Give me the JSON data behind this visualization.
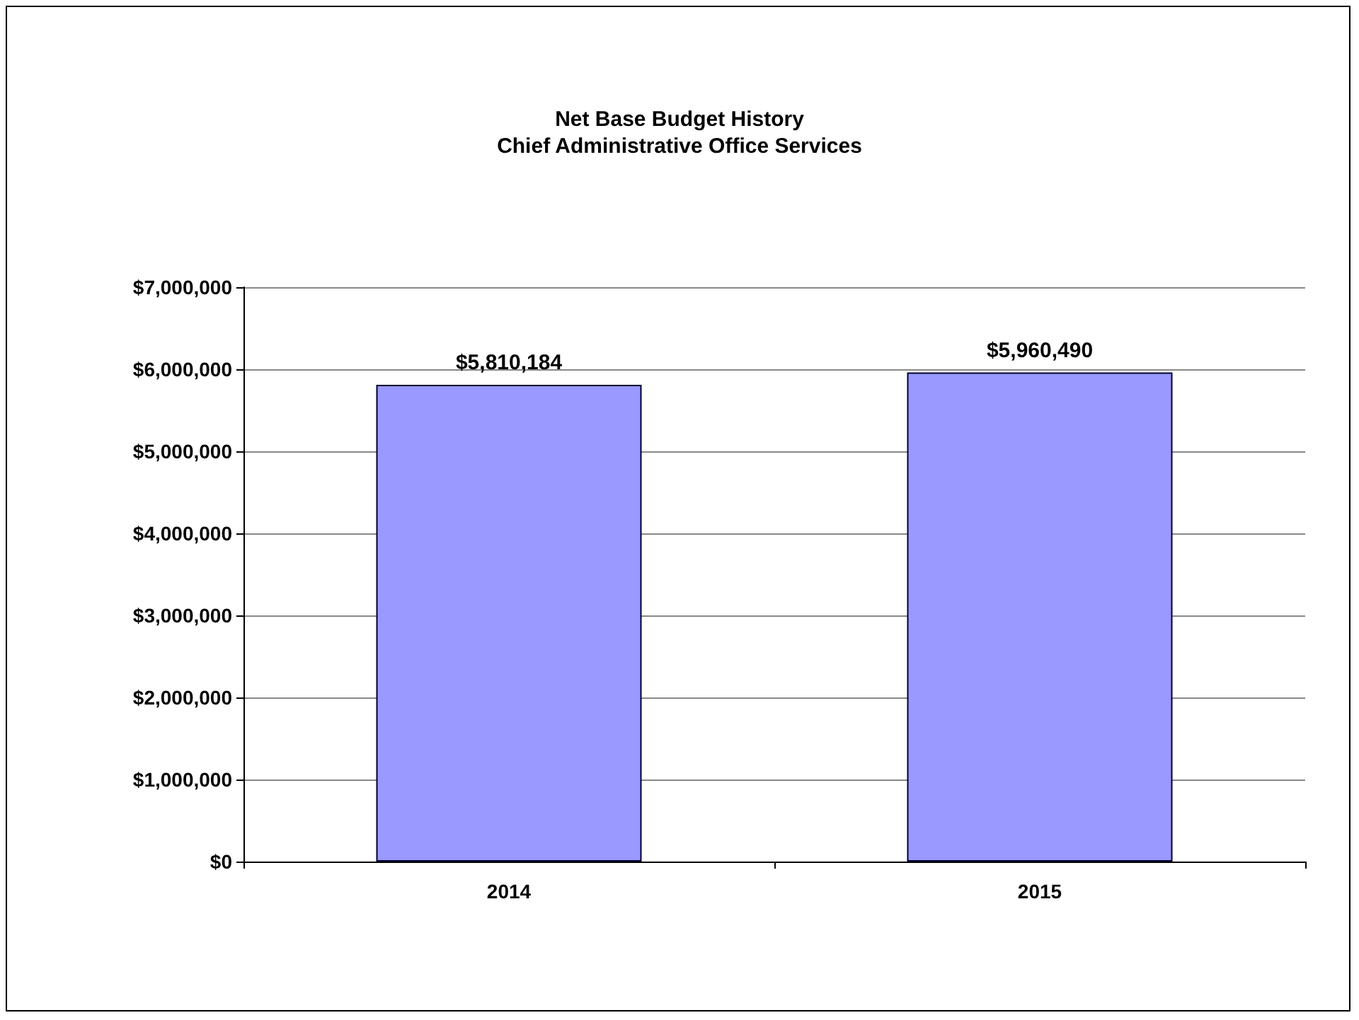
{
  "chart_data": {
    "type": "bar",
    "title": "Net Base Budget History",
    "subtitle": "Chief Administrative Office Services",
    "categories": [
      "2014",
      "2015"
    ],
    "values": [
      5810184,
      5960490
    ],
    "value_labels": [
      "$5,810,184",
      "$5,960,490"
    ],
    "color": "#9999ff",
    "ylim": [
      0,
      7000000
    ],
    "yticks": [
      {
        "value": 0,
        "label": "$0"
      },
      {
        "value": 1000000,
        "label": "$1,000,000"
      },
      {
        "value": 2000000,
        "label": "$2,000,000"
      },
      {
        "value": 3000000,
        "label": "$3,000,000"
      },
      {
        "value": 4000000,
        "label": "$4,000,000"
      },
      {
        "value": 5000000,
        "label": "$5,000,000"
      },
      {
        "value": 6000000,
        "label": "$6,000,000"
      },
      {
        "value": 7000000,
        "label": "$7,000,000"
      }
    ],
    "grid": "y"
  }
}
